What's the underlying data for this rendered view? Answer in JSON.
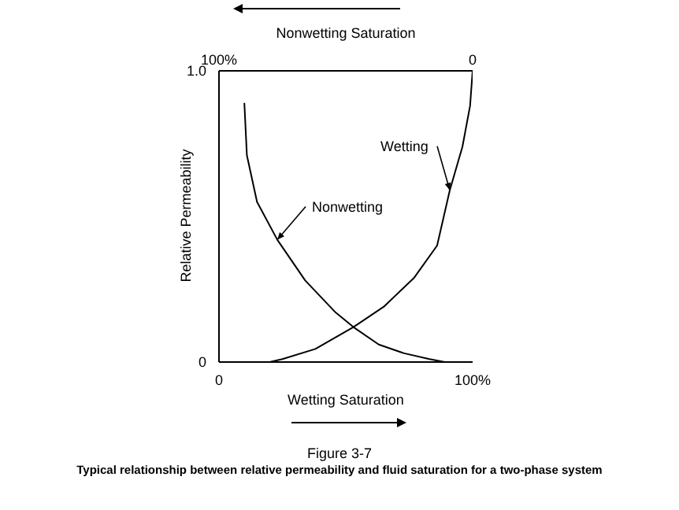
{
  "chart_data": {
    "type": "line",
    "title": "Figure 3-7",
    "subtitle": "Typical relationship between relative permeability and fluid saturation for a two-phase system",
    "xlabel": "Wetting Saturation",
    "x2label": "Nonwetting Saturation",
    "ylabel": "Relative Permeability",
    "xlim": [
      0,
      100
    ],
    "xticks": [
      0,
      {
        "value": 100,
        "label": "100%"
      }
    ],
    "x2lim": [
      100,
      0
    ],
    "x2ticks": [
      {
        "value": 100,
        "label": "100%"
      },
      0
    ],
    "ylim": [
      0,
      1
    ],
    "yticks": [
      0,
      {
        "value": 1,
        "label": "1.0"
      }
    ],
    "grid": false,
    "legend": false,
    "marker": "none",
    "line_style": "solid",
    "series": [
      {
        "name": "Nonwetting",
        "color": "#000000",
        "x": [
          10,
          11,
          15,
          23,
          34,
          46,
          53,
          63,
          73,
          83,
          89
        ],
        "values": [
          0.89,
          0.71,
          0.55,
          0.42,
          0.28,
          0.17,
          0.12,
          0.06,
          0.03,
          0.01,
          0
        ]
      },
      {
        "name": "Wetting",
        "color": "#000000",
        "x": [
          20,
          25,
          38,
          53,
          65,
          77,
          86,
          91,
          96,
          99,
          100
        ],
        "values": [
          0,
          0.01,
          0.045,
          0.12,
          0.19,
          0.29,
          0.4,
          0.59,
          0.74,
          0.88,
          1
        ]
      }
    ]
  }
}
